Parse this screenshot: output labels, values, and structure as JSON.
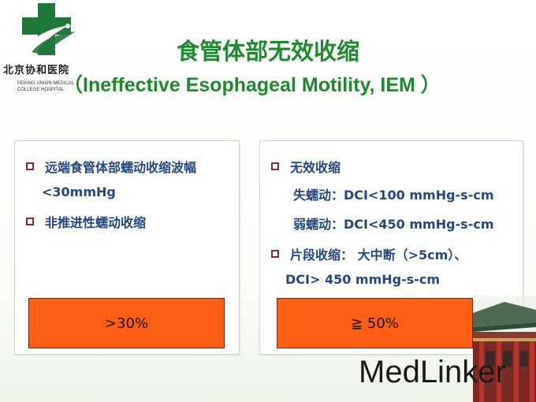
{
  "logo": {
    "name_cn": "北京协和医院",
    "name_en": "PEKING UNION MEDICAL COLLEGE HOSPITAL"
  },
  "title": {
    "cn": "食管体部无效收缩",
    "en": "（Ineffective Esophageal Motility, IEM ）"
  },
  "left_panel": {
    "items": [
      {
        "line1": "远端食管体部蠕动收缩波幅",
        "line2": "<30mmHg"
      },
      {
        "line1": "非推进性蠕动收缩"
      }
    ],
    "summary": ">30%"
  },
  "right_panel": {
    "item1": "无效收缩",
    "sub1": "失蠕动：DCI<100 mmHg-s-cm",
    "sub2": "弱蠕动：DCI<450 mmHg-s-cm",
    "item2_line1": "片段收缩： 大中断（>5cm）、",
    "item2_line2": "DCI> 450 mmHg-s-cm",
    "summary": "≧ 50%"
  },
  "watermark": "MedLinker",
  "colors": {
    "title_green": "#1e8a2e",
    "text_blue": "#23477f",
    "orange_box": "#ff5e14",
    "bullet": "#8a2a2a"
  }
}
